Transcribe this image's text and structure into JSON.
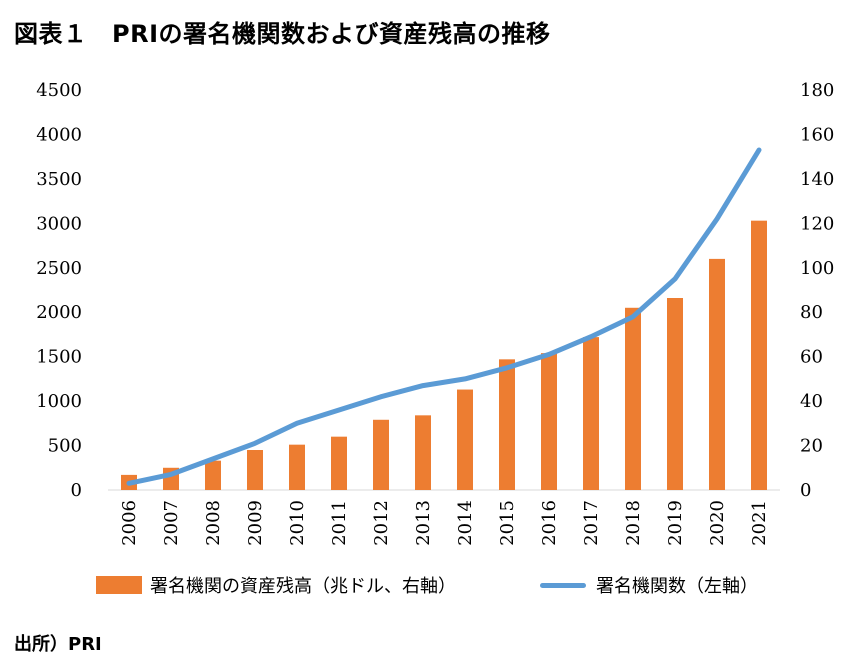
{
  "title": "図表１　PRIの署名機関数および資産残高の推移",
  "source": "出所）PRI",
  "chart_data": {
    "type": "bar+line",
    "categories": [
      "2006",
      "2007",
      "2008",
      "2009",
      "2010",
      "2011",
      "2012",
      "2013",
      "2014",
      "2015",
      "2016",
      "2017",
      "2018",
      "2019",
      "2020",
      "2021"
    ],
    "series": [
      {
        "name": "署名機関の資産残高（兆ドル、右軸）",
        "type": "bar",
        "axis": "left",
        "color": "#ED7D31",
        "values": [
          170,
          250,
          330,
          450,
          510,
          600,
          790,
          840,
          1130,
          1470,
          1540,
          1720,
          2050,
          2160,
          2600,
          3030
        ]
      },
      {
        "name": "署名機関数（左軸）",
        "type": "line",
        "axis": "right",
        "color": "#5B9BD5",
        "values": [
          3,
          7,
          14,
          21,
          30,
          36,
          42,
          47,
          50,
          55,
          61,
          69,
          78,
          95,
          122,
          153
        ]
      }
    ],
    "left_axis": {
      "min": 0,
      "max": 4500,
      "step": 500,
      "ticks": [
        "0",
        "500",
        "1000",
        "1500",
        "2000",
        "2500",
        "3000",
        "3500",
        "4000",
        "4500"
      ]
    },
    "right_axis": {
      "min": 0,
      "max": 180,
      "step": 20,
      "ticks": [
        "0",
        "20",
        "40",
        "60",
        "80",
        "100",
        "120",
        "140",
        "160",
        "180"
      ]
    },
    "grid": false,
    "legend_position": "bottom"
  }
}
